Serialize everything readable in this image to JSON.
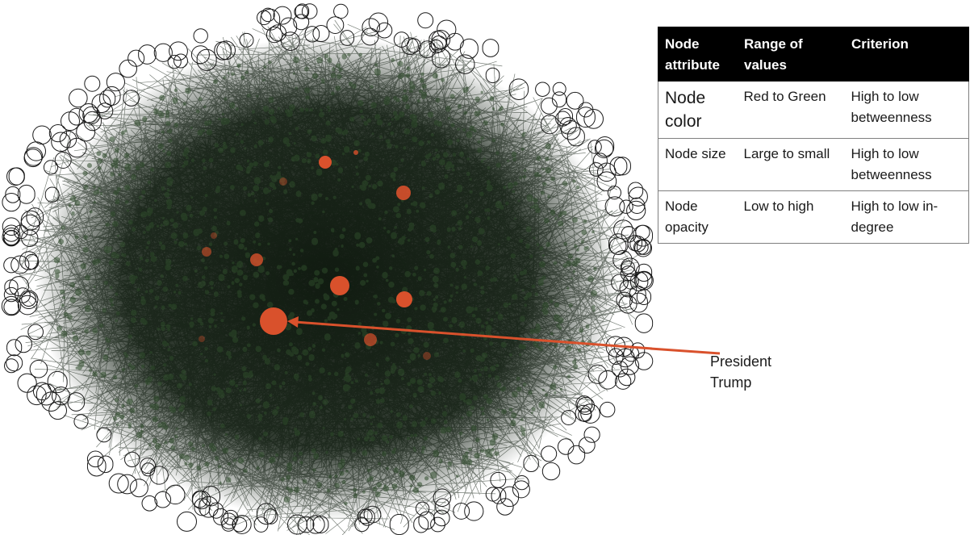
{
  "legend": {
    "headers": [
      "Node attribute",
      "Range of values",
      "Criterion"
    ],
    "rows": [
      {
        "attribute": "Node color",
        "range": "Red to Green",
        "criterion": "High to low betweenness"
      },
      {
        "attribute": "Node size",
        "range": "Large to small",
        "criterion": "High to low betweenness"
      },
      {
        "attribute": "Node opacity",
        "range": "Low to high",
        "criterion": "High to low in-degree"
      }
    ]
  },
  "annotation": {
    "label": "President Trump"
  },
  "colors": {
    "edge": "#0c1a0c",
    "low_betweenness_node": "#2e4a2a",
    "high_betweenness_node": "#d9512c",
    "arrow": "#d9512c"
  }
}
